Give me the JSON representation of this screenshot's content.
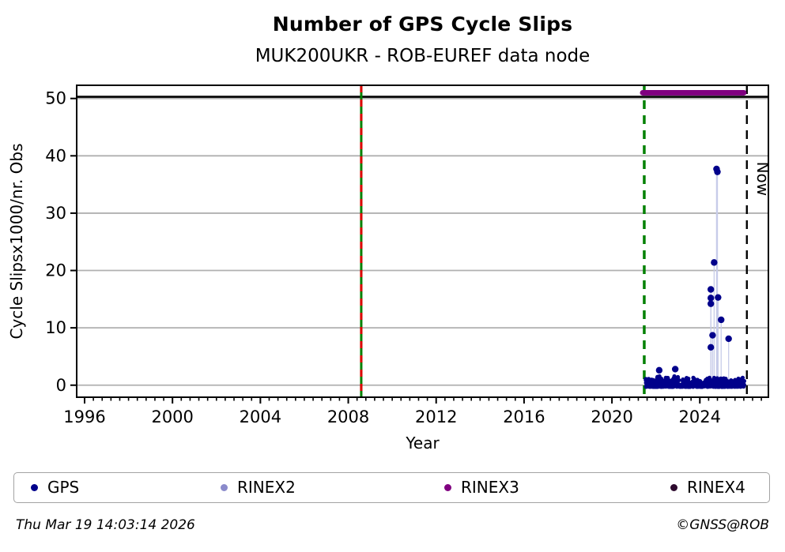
{
  "header": {
    "title": "Number of GPS Cycle Slips",
    "subtitle": "MUK200UKR - ROB-EUREF data node"
  },
  "footer": {
    "timestamp": "Thu Mar 19 14:03:14 2026",
    "credit": "©GNSS@ROB"
  },
  "chart_data": {
    "type": "scatter",
    "title": "Number of GPS Cycle Slips",
    "subtitle": "MUK200UKR - ROB-EUREF data node",
    "xlabel": "Year",
    "ylabel": "Cycle Slipsx1000/nr. Obs",
    "xlim": [
      1995.64,
      2027.12
    ],
    "ylim": [
      -2.1,
      52.3
    ],
    "xticks": [
      1996,
      2000,
      2004,
      2008,
      2012,
      2016,
      2020,
      2024
    ],
    "yticks": [
      0,
      10,
      20,
      30,
      40,
      50
    ],
    "minor_xtick_step": 0.4,
    "grid": "horizontal-only",
    "grid_color": "#b0b0b0",
    "stem_color": "#c7cce9",
    "series": [
      {
        "name": "GPS",
        "color": "#00008b",
        "points": [
          [
            2022.15,
            2.6
          ],
          [
            2022.88,
            2.8
          ],
          [
            2024.5,
            16.7
          ],
          [
            2024.5,
            15.2
          ],
          [
            2024.5,
            14.2
          ],
          [
            2024.5,
            6.6
          ],
          [
            2024.58,
            8.7
          ],
          [
            2024.65,
            21.4
          ],
          [
            2024.76,
            37.7
          ],
          [
            2024.8,
            37.2
          ],
          [
            2024.83,
            15.3
          ],
          [
            2024.97,
            11.4
          ],
          [
            2025.31,
            8.1
          ]
        ],
        "noise_band": {
          "x_start": 2021.53,
          "x_end": 2026.02,
          "y_min": -0.3,
          "y_max": 1.3,
          "count": 650,
          "seed": 42,
          "bumps": [
            [
              2022.15,
              1.9
            ],
            [
              2022.9,
              2.0
            ],
            [
              2023.35,
              1.2
            ],
            [
              2024.55,
              1.6
            ],
            [
              2024.9,
              1.3
            ],
            [
              2025.55,
              1.1
            ]
          ]
        }
      },
      {
        "name": "RINEX2",
        "color": "#8a8acb",
        "points": []
      },
      {
        "name": "RINEX3",
        "color": "#800080",
        "bar": {
          "y": 51,
          "x_start": 2021.4,
          "x_end": 2026.0,
          "thickness": 7
        }
      },
      {
        "name": "RINEX4",
        "color": "#2d0a2e",
        "points": []
      }
    ],
    "hline": {
      "y": 50.3,
      "color": "#000000"
    },
    "vlines": [
      {
        "x": 2008.59,
        "style": "solid-with-red-dashes",
        "color": "#008000",
        "dash_color": "#dd0000"
      },
      {
        "x": 2021.47,
        "style": "dashed",
        "color": "#008000"
      },
      {
        "x": 2026.14,
        "style": "dashed",
        "color": "#000000",
        "label": "Now"
      }
    ]
  }
}
